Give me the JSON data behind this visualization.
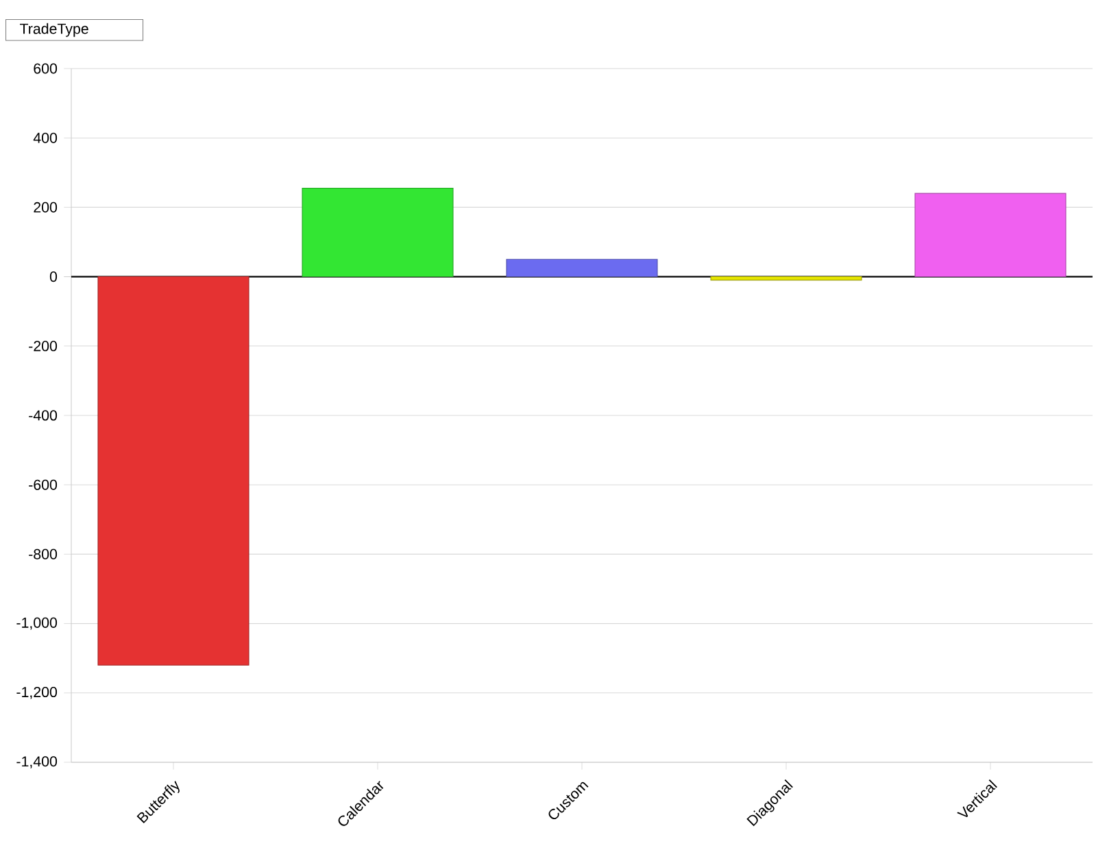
{
  "chart_data": {
    "type": "bar",
    "title": "TradeType",
    "categories": [
      "Butterfly",
      "Calendar",
      "Custom",
      "Diagonal",
      "Vertical"
    ],
    "values": [
      -1120,
      255,
      50,
      -10,
      240
    ],
    "colors": [
      "#e53232",
      "#33e633",
      "#6b6bf0",
      "#e6e600",
      "#f060f0"
    ],
    "ylim": [
      -1400,
      600
    ],
    "yticks": [
      {
        "value": -1400,
        "label": "-1,400"
      },
      {
        "value": -1200,
        "label": "-1,200"
      },
      {
        "value": -1000,
        "label": "-1,000"
      },
      -800,
      -600,
      -400,
      -200,
      0,
      200,
      400,
      600
    ],
    "grid": "y"
  }
}
